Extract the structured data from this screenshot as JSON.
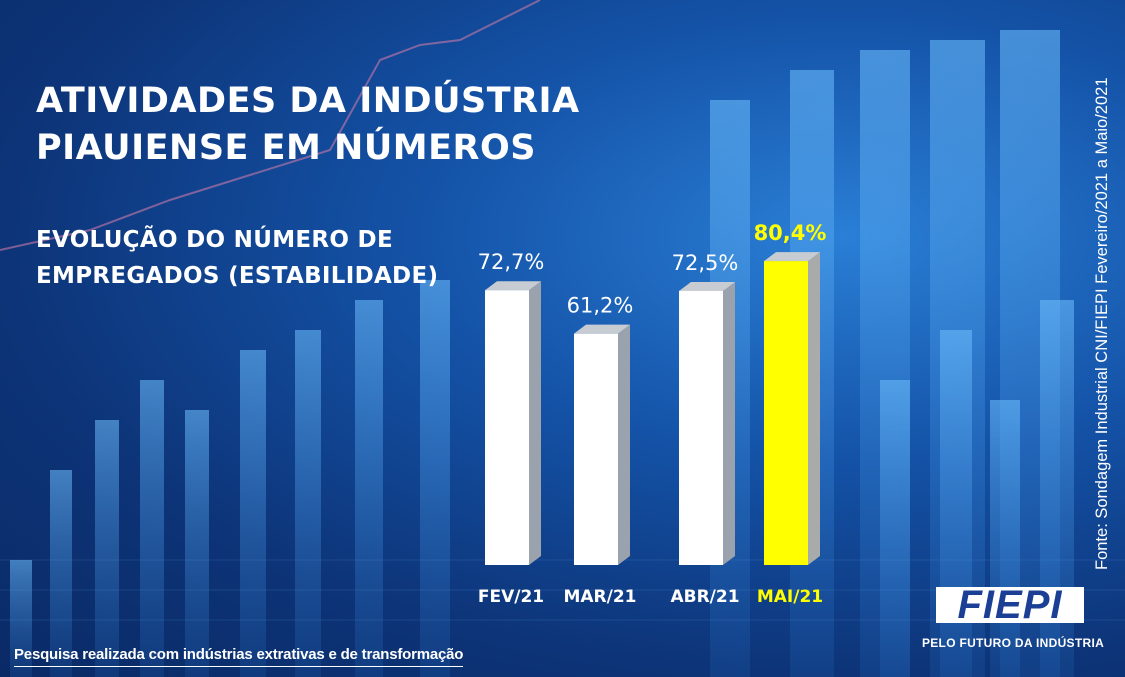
{
  "heading": {
    "line1": "ATIVIDADES DA INDÚSTRIA",
    "line2": "PIAUIENSE EM NÚMEROS"
  },
  "chart_data": {
    "type": "bar",
    "title": "EVOLUÇÃO DO NÚMERO DE EMPREGADOS (ESTABILIDADE)",
    "title_lines": [
      "EVOLUÇÃO DO NÚMERO DE",
      "EMPREGADOS (ESTABILIDADE)"
    ],
    "categories": [
      "FEV/21",
      "MAR/21",
      "ABR/21",
      "MAI/21"
    ],
    "values": [
      72.7,
      61.2,
      72.5,
      80.4
    ],
    "value_labels": [
      "72,7%",
      "61,2%",
      "72,5%",
      "80,4%"
    ],
    "unit": "%",
    "highlight_index": 3,
    "colors": {
      "bar": "#ffffff",
      "bar_side": "#9aa3ad",
      "bar_top": "#c7ccd2",
      "highlight": "#ffff00",
      "highlight_side": "#a9abab",
      "label": "#ffffff",
      "highlight_label": "#ffff00"
    },
    "xlabel": "",
    "ylabel": "",
    "grid": false,
    "legend": "none"
  },
  "source": "Fonte: Sondagem Industrial CNI/FIEPI Fevereiro/2021 a Maio/2021",
  "footnote": "Pesquisa realizada com indústrias extrativas e de transformação",
  "brand": {
    "logo_text": "FIEPI",
    "tagline": "PELO FUTURO DA INDÚSTRIA"
  },
  "colors": {
    "background": "#0d3478",
    "text": "#ffffff",
    "logo_blue": "#1a3f95"
  }
}
